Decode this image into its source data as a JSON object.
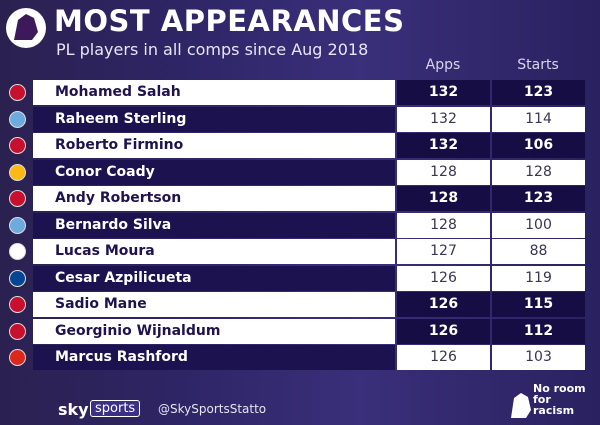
{
  "header": {
    "title": "MOST APPEARANCES",
    "subtitle": "PL players in all comps since Aug 2018"
  },
  "table": {
    "columns": [
      "Apps",
      "Starts"
    ],
    "rows": [
      [
        "Mohamed Salah",
        132,
        123
      ],
      [
        "Raheem Sterling",
        132,
        114
      ],
      [
        "Roberto Firmino",
        132,
        106
      ],
      [
        "Conor Coady",
        128,
        128
      ],
      [
        "Andy Robertson",
        128,
        123
      ],
      [
        "Bernardo Silva",
        128,
        100
      ],
      [
        "Lucas Moura",
        127,
        88
      ],
      [
        "Cesar Azpilicueta",
        126,
        119
      ],
      [
        "Sadio Mane",
        126,
        115
      ],
      [
        "Georginio Wijnaldum",
        126,
        112
      ],
      [
        "Marcus Rashford",
        126,
        103
      ]
    ]
  },
  "footer": {
    "brand": "sky",
    "brand_box": "sports",
    "handle": "@SkySportsStatto",
    "campaign": "No room for racism"
  }
}
